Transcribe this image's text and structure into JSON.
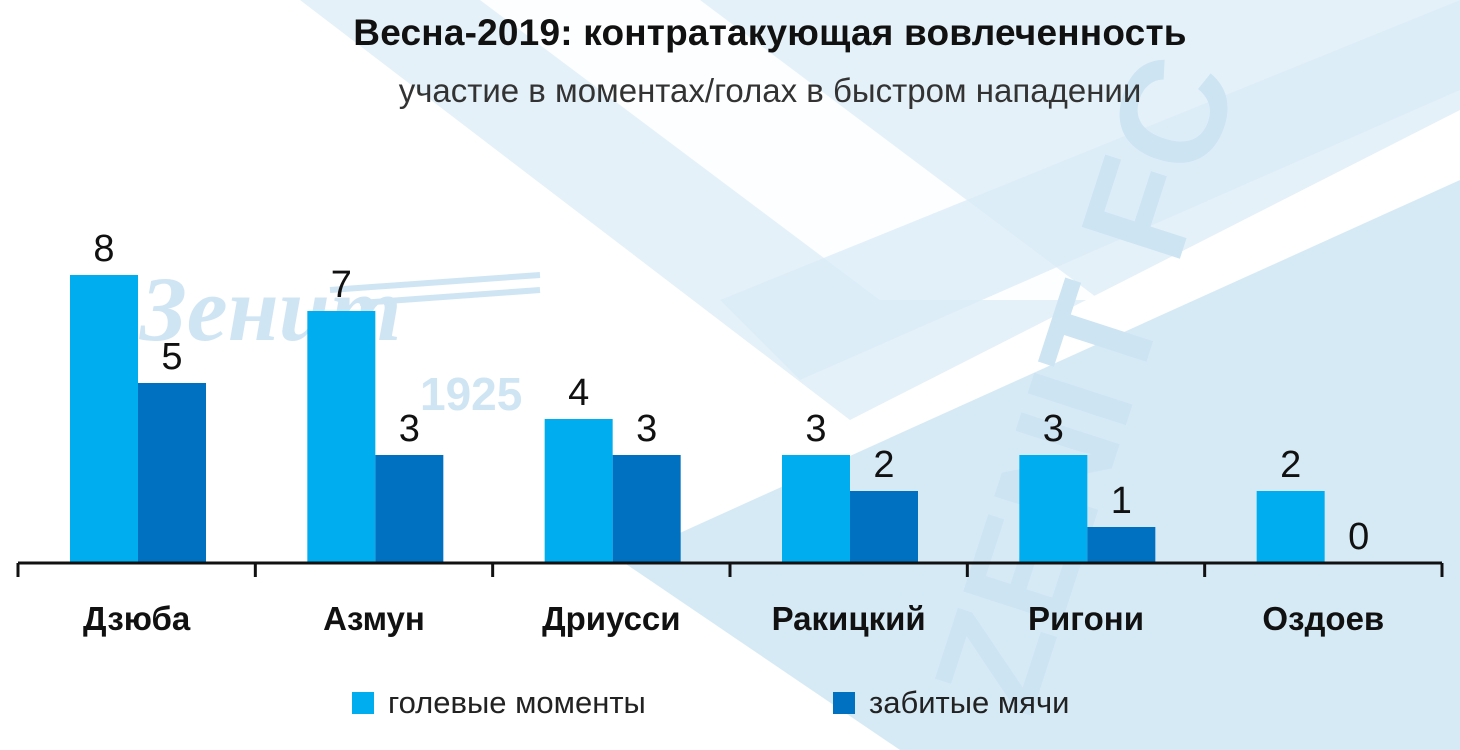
{
  "chart_data": {
    "type": "bar",
    "title": "Весна-2019: контратакующая вовлеченность",
    "subtitle": "участие в моментах/голах в быстром нападении",
    "categories": [
      "Дзюба",
      "Азмун",
      "Дриусси",
      "Ракицкий",
      "Ригони",
      "Оздоев"
    ],
    "series": [
      {
        "name": "голевые моменты",
        "values": [
          8,
          7,
          4,
          3,
          3,
          2
        ],
        "color": "#00aeef"
      },
      {
        "name": "забитые мячи",
        "values": [
          5,
          3,
          3,
          2,
          1,
          0
        ],
        "color": "#0070c0"
      }
    ],
    "ylim": [
      0,
      8
    ],
    "grid": false,
    "legend_position": "bottom",
    "watermark": {
      "logo_text": "Зенит",
      "year": "1925",
      "club_text": "ZENIT FC"
    }
  }
}
